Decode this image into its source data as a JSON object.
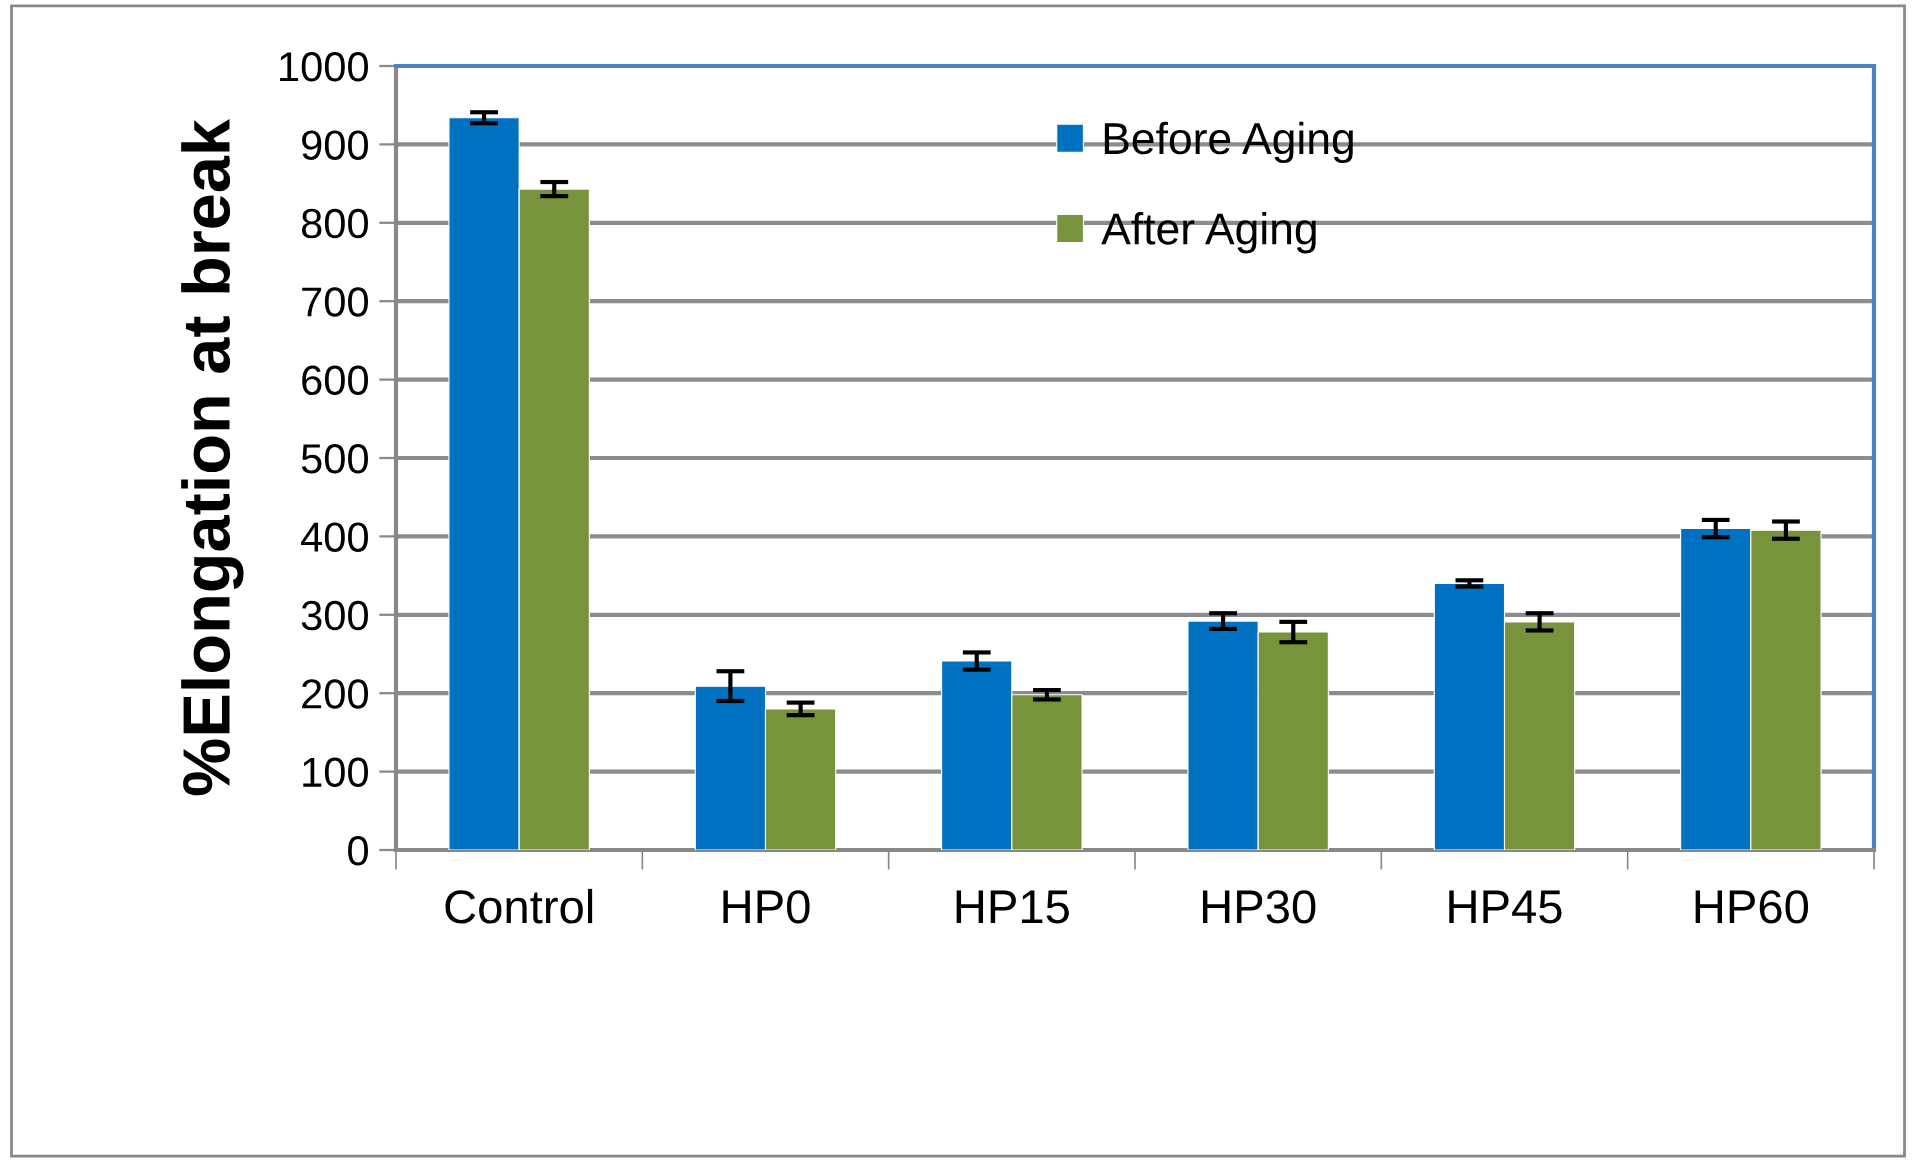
{
  "chart_data": {
    "type": "bar",
    "ylabel": "%Elongation at break",
    "categories": [
      "Control",
      "HP0",
      "HP15",
      "HP30",
      "HP45",
      "HP60"
    ],
    "series": [
      {
        "name": "Before Aging",
        "color": "#0070c0",
        "values": [
          934,
          209,
          241,
          292,
          340,
          410
        ],
        "errors": [
          7,
          19,
          11,
          10,
          4,
          11
        ]
      },
      {
        "name": "After Aging",
        "color": "#77933c",
        "values": [
          843,
          180,
          198,
          278,
          291,
          408
        ],
        "errors": [
          9,
          8,
          6,
          13,
          11,
          11
        ]
      }
    ],
    "ylim": [
      0,
      1000
    ],
    "yticks": [
      0,
      100,
      200,
      300,
      400,
      500,
      600,
      700,
      800,
      900,
      1000
    ],
    "grid": "y",
    "legend": "top"
  }
}
